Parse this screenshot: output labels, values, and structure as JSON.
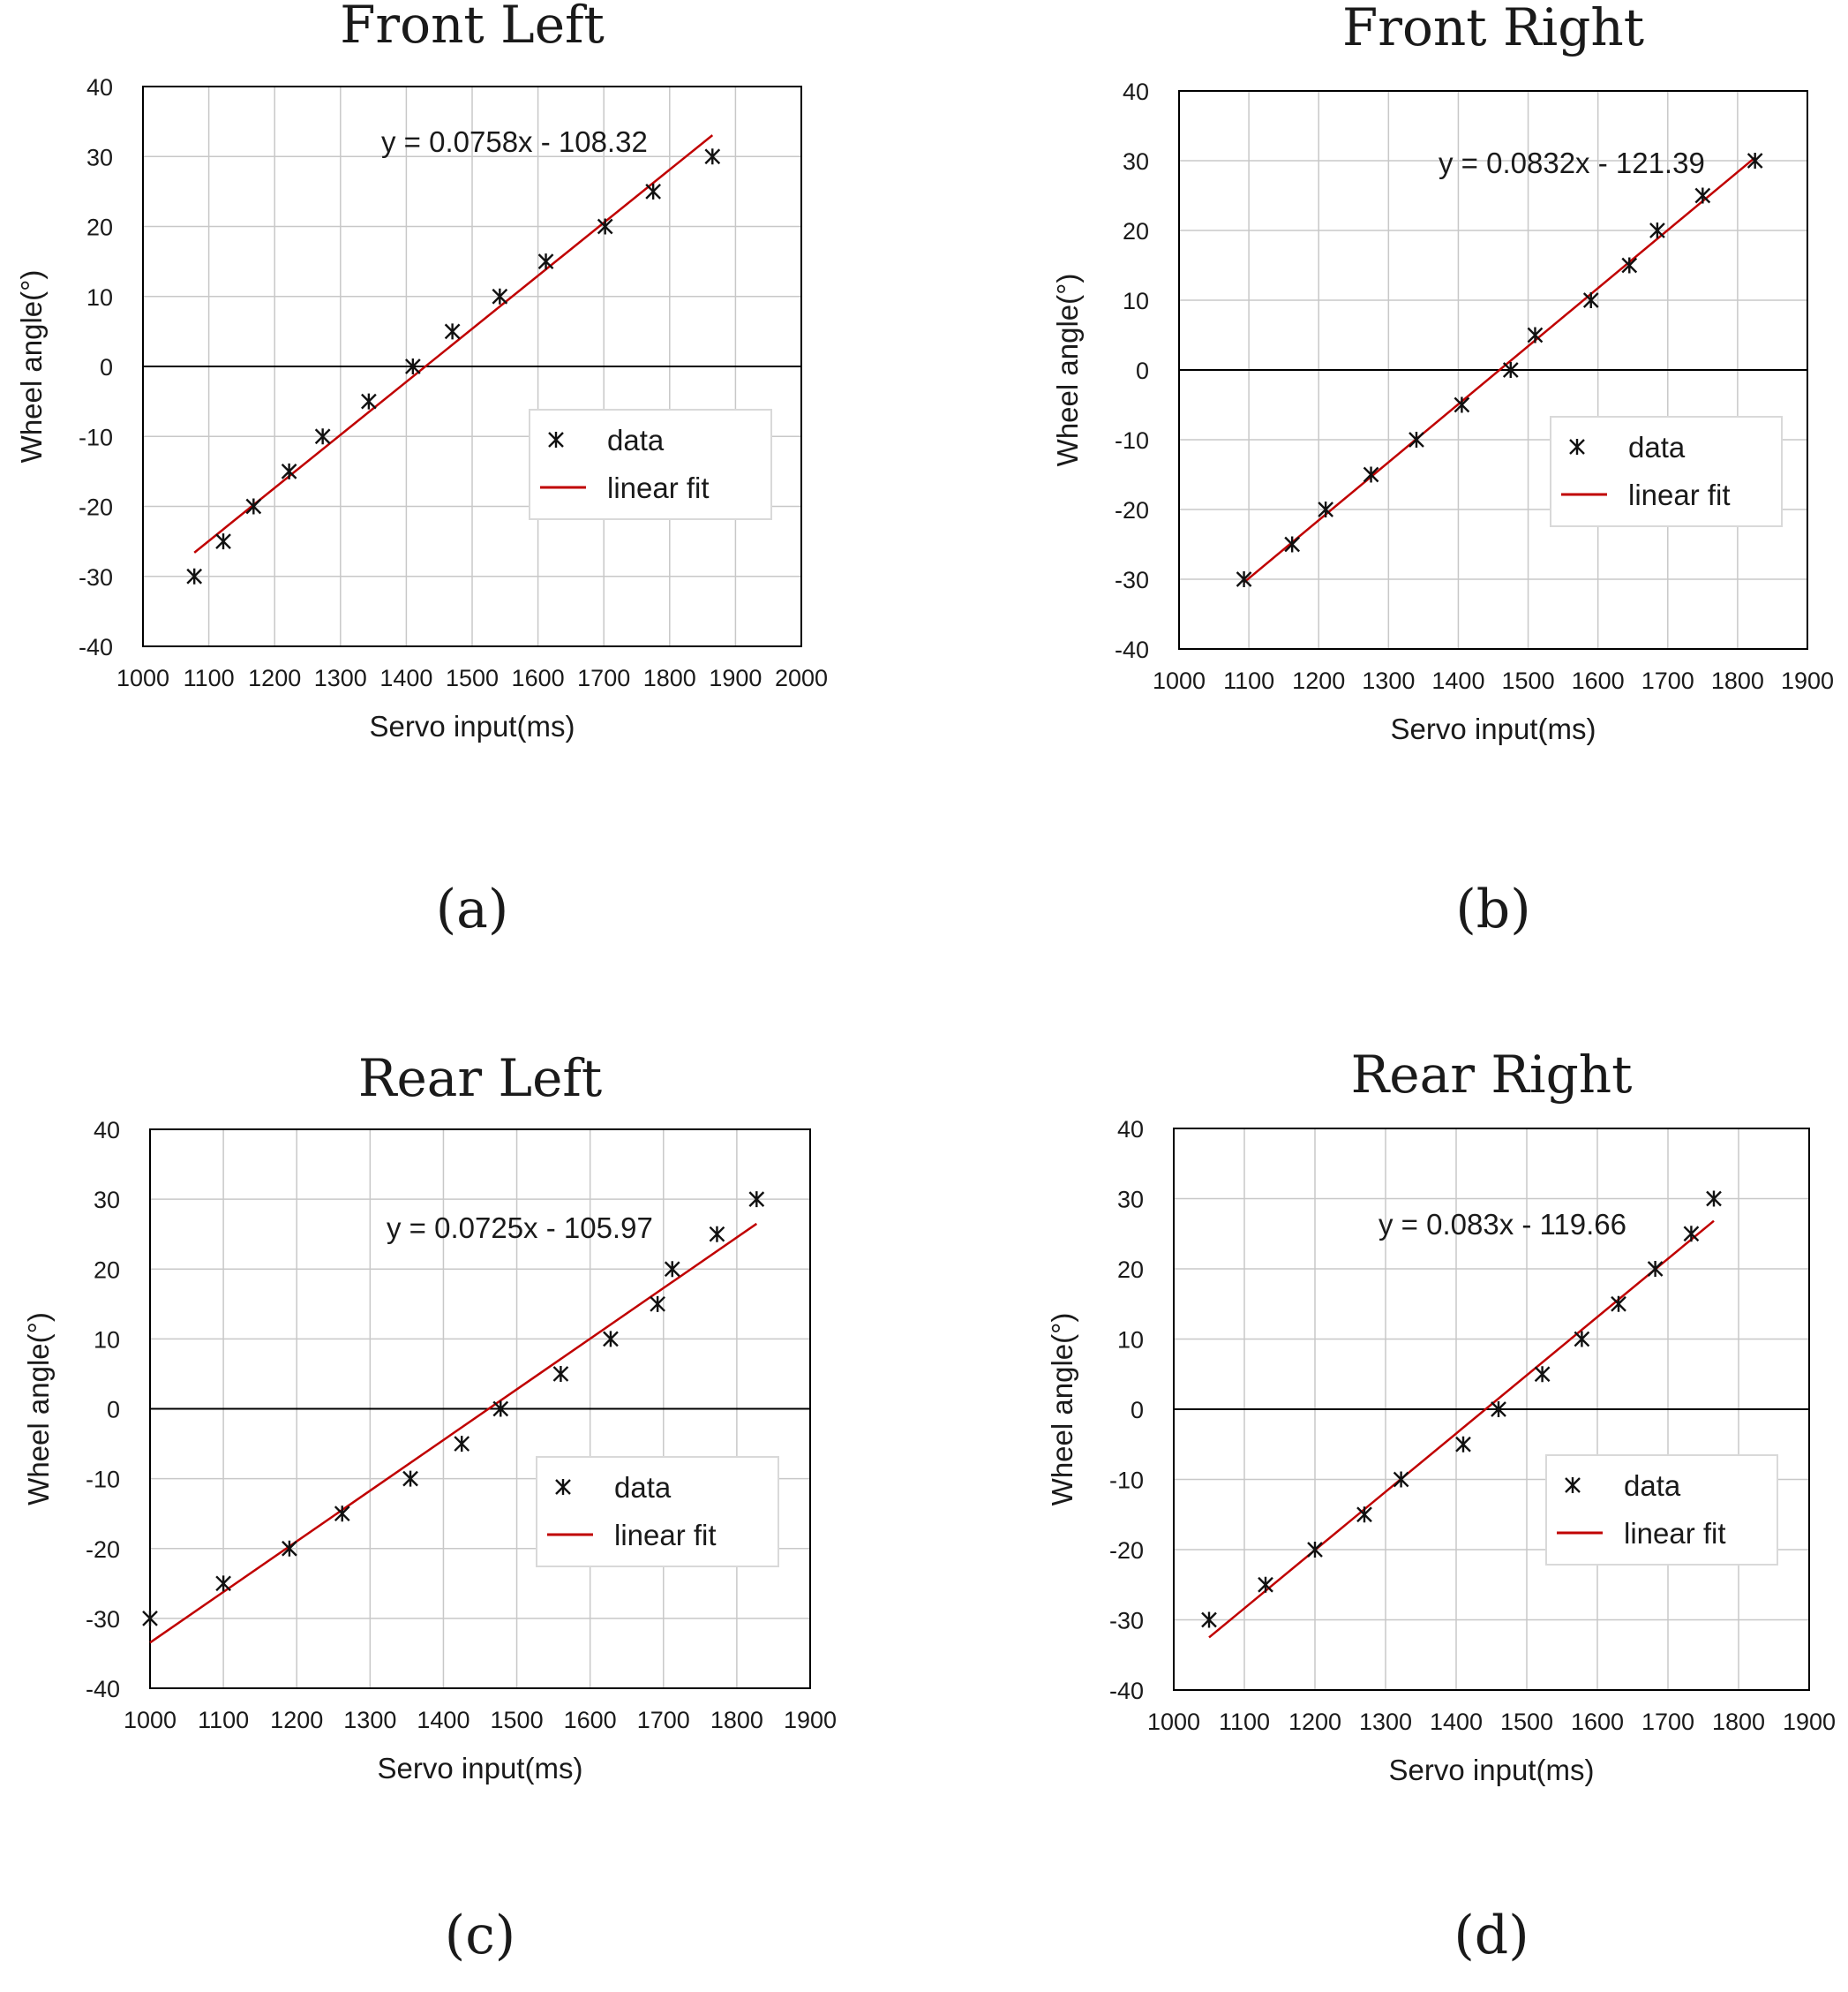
{
  "chart_data": [
    {
      "type": "scatter",
      "title": "Front Left",
      "panel_label": "(a)",
      "xlabel": "Servo input(ms)",
      "ylabel": "Wheel angle(°)",
      "xlim": [
        1000,
        2000
      ],
      "ylim": [
        -40,
        40
      ],
      "x_ticks": [
        "1000",
        "1100",
        "1200",
        "1300",
        "1400",
        "1500",
        "1600",
        "1700",
        "1800",
        "1900",
        "2000"
      ],
      "y_ticks": [
        "40",
        "30",
        "20",
        "10",
        "0",
        "-10",
        "-20",
        "-30",
        "-40"
      ],
      "series": [
        {
          "name": "data",
          "marker": "asterisk",
          "x": [
            1078,
            1122,
            1168,
            1222,
            1273,
            1343,
            1410,
            1470,
            1542,
            1612,
            1702,
            1775,
            1865
          ],
          "y": [
            -30,
            -25,
            -20,
            -15,
            -10,
            -5,
            0,
            5,
            10,
            15,
            20,
            25,
            30
          ]
        },
        {
          "name": "linear fit",
          "color": "#c00000",
          "x": [
            1078,
            1865
          ],
          "slope": 0.0758,
          "intercept": -108.32
        }
      ],
      "equation": "y = 0.0758x - 108.32",
      "legend": {
        "position": "right",
        "items": [
          "data",
          "linear fit"
        ]
      }
    },
    {
      "type": "scatter",
      "title": "Front Right",
      "panel_label": "(b)",
      "xlabel": "Servo input(ms)",
      "ylabel": "Wheel angle(°)",
      "xlim": [
        1000,
        1900
      ],
      "ylim": [
        -40,
        40
      ],
      "x_ticks": [
        "1000",
        "1100",
        "1200",
        "1300",
        "1400",
        "1500",
        "1600",
        "1700",
        "1800",
        "1900"
      ],
      "y_ticks": [
        "40",
        "30",
        "20",
        "10",
        "0",
        "-10",
        "-20",
        "-30",
        "-40"
      ],
      "series": [
        {
          "name": "data",
          "marker": "asterisk",
          "x": [
            1093,
            1162,
            1210,
            1275,
            1340,
            1405,
            1475,
            1510,
            1590,
            1645,
            1685,
            1750,
            1825
          ],
          "y": [
            -30,
            -25,
            -20,
            -15,
            -10,
            -5,
            0,
            5,
            10,
            15,
            20,
            25,
            30
          ]
        },
        {
          "name": "linear fit",
          "color": "#c00000",
          "x": [
            1093,
            1825
          ],
          "slope": 0.0832,
          "intercept": -121.39
        }
      ],
      "equation": "y = 0.0832x - 121.39",
      "legend": {
        "position": "right",
        "items": [
          "data",
          "linear fit"
        ]
      }
    },
    {
      "type": "scatter",
      "title": "Rear Left",
      "panel_label": "(c)",
      "xlabel": "Servo input(ms)",
      "ylabel": "Wheel angle(°)",
      "xlim": [
        1000,
        1900
      ],
      "ylim": [
        -40,
        40
      ],
      "x_ticks": [
        "1000",
        "1100",
        "1200",
        "1300",
        "1400",
        "1500",
        "1600",
        "1700",
        "1800",
        "1900"
      ],
      "y_ticks": [
        "40",
        "30",
        "20",
        "10",
        "0",
        "-10",
        "-20",
        "-30",
        "-40"
      ],
      "series": [
        {
          "name": "data",
          "marker": "asterisk",
          "x": [
            1000,
            1100,
            1190,
            1262,
            1355,
            1425,
            1478,
            1560,
            1628,
            1692,
            1712,
            1773,
            1827
          ],
          "y": [
            -30,
            -25,
            -20,
            -15,
            -10,
            -5,
            0,
            5,
            10,
            15,
            20,
            25,
            30
          ]
        },
        {
          "name": "linear fit",
          "color": "#c00000",
          "x": [
            1000,
            1827
          ],
          "slope": 0.0725,
          "intercept": -105.97
        }
      ],
      "equation": "y = 0.0725x - 105.97",
      "legend": {
        "position": "right",
        "items": [
          "data",
          "linear fit"
        ]
      }
    },
    {
      "type": "scatter",
      "title": "Rear Right",
      "panel_label": "(d)",
      "xlabel": "Servo input(ms)",
      "ylabel": "Wheel angle(°)",
      "xlim": [
        1000,
        1900
      ],
      "ylim": [
        -40,
        40
      ],
      "x_ticks": [
        "1000",
        "1100",
        "1200",
        "1300",
        "1400",
        "1500",
        "1600",
        "1700",
        "1800",
        "1900"
      ],
      "y_ticks": [
        "40",
        "30",
        "20",
        "10",
        "0",
        "-10",
        "-20",
        "-30",
        "-40"
      ],
      "series": [
        {
          "name": "data",
          "marker": "asterisk",
          "x": [
            1050,
            1130,
            1200,
            1270,
            1322,
            1410,
            1460,
            1522,
            1578,
            1630,
            1682,
            1733,
            1765
          ],
          "y": [
            -30,
            -25,
            -20,
            -15,
            -10,
            -5,
            0,
            5,
            10,
            15,
            20,
            25,
            30
          ]
        },
        {
          "name": "linear fit",
          "color": "#c00000",
          "x": [
            1050,
            1765
          ],
          "slope": 0.083,
          "intercept": -119.66
        }
      ],
      "equation": "y = 0.083x - 119.66",
      "legend": {
        "position": "right",
        "items": [
          "data",
          "linear fit"
        ]
      }
    }
  ]
}
